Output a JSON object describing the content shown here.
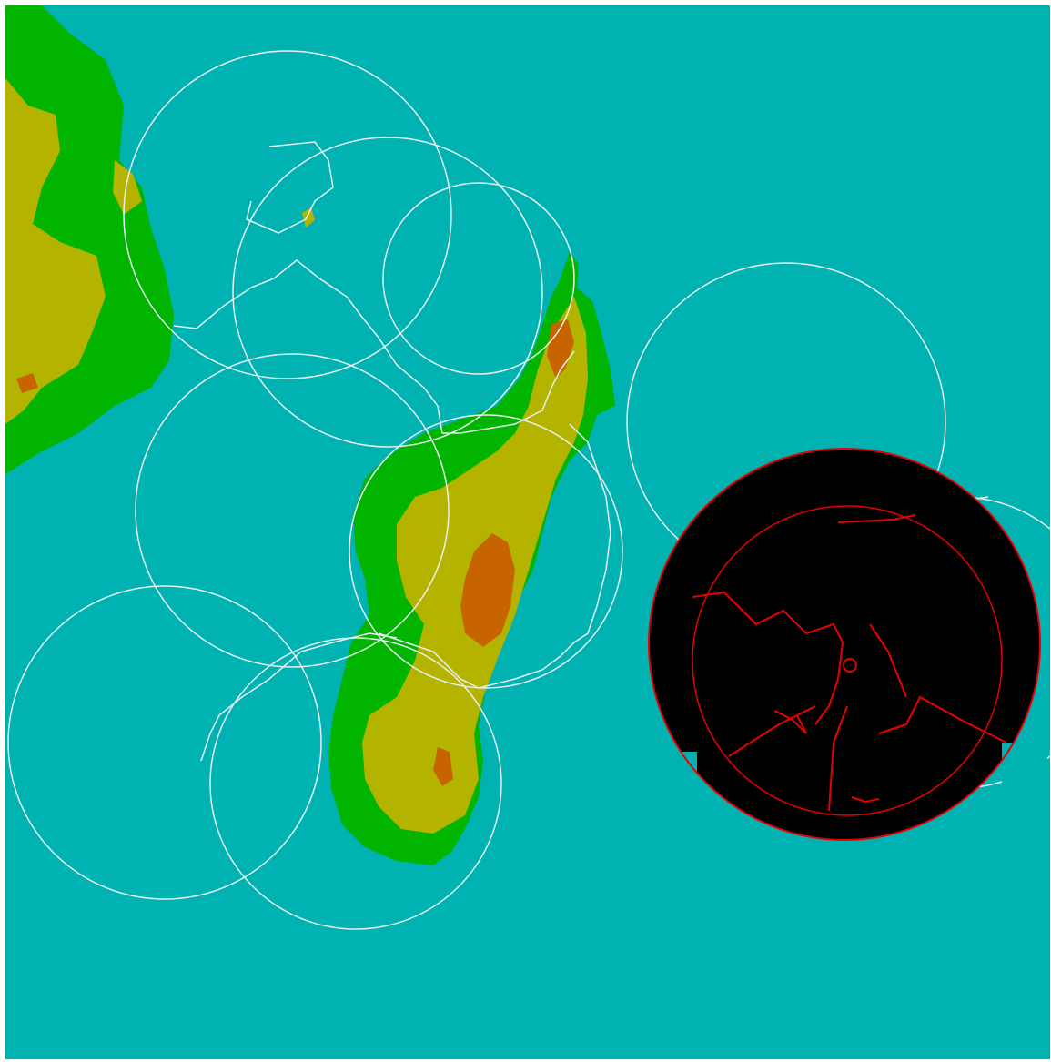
{
  "map": {
    "colors": {
      "ocean": "#00b2b2",
      "lowland": "#00b400",
      "highland": "#b4b400",
      "peak": "#c86400",
      "coverage_outline": "#e6f0f0",
      "radar_background": "#000000",
      "radar_echo": "#e60000"
    },
    "layers": [
      "ocean",
      "terrain",
      "radar-coverage-circles",
      "radar-scan"
    ]
  }
}
